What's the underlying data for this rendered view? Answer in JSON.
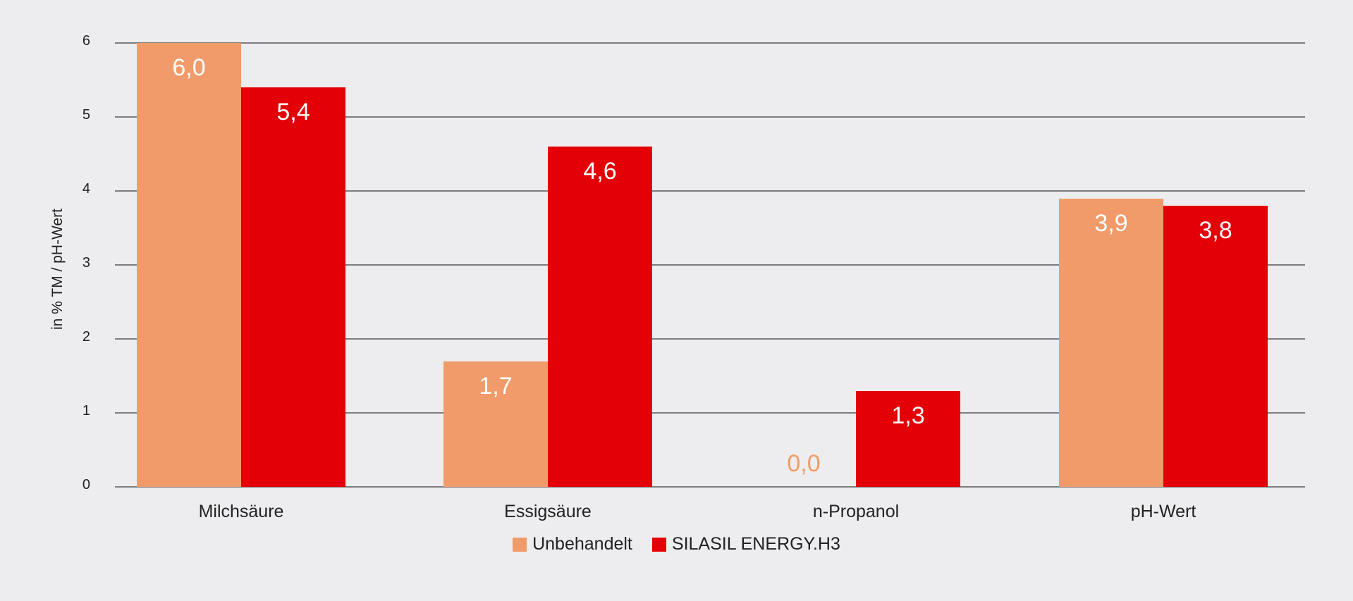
{
  "chart_data": {
    "type": "bar",
    "title": "",
    "xlabel": "",
    "ylabel": "in % TM / pH-Wert",
    "ylim": [
      0,
      6
    ],
    "yticks": [
      "0",
      "1",
      "2",
      "3",
      "4",
      "5",
      "6"
    ],
    "grid": true,
    "legend_position": "bottom",
    "categories": [
      "Milchsäure",
      "Essigsäure",
      "n-Propanol",
      "pH-Wert"
    ],
    "series": [
      {
        "name": "Unbehandelt",
        "color": "#f09b69",
        "values": [
          6.0,
          1.7,
          0.0,
          3.9
        ],
        "labels": [
          "6,0",
          "1,7",
          "0,0",
          "3,9"
        ]
      },
      {
        "name": "SILASIL ENERGY.H3",
        "color": "#e30006",
        "values": [
          5.4,
          4.6,
          1.3,
          3.8
        ],
        "labels": [
          "5,4",
          "4,6",
          "1,3",
          "3,8"
        ]
      }
    ]
  },
  "colors": {
    "background": "#ededef",
    "gridline": "#7d7d7d",
    "unbehandelt": "#f09b69",
    "silasil": "#e30006"
  }
}
